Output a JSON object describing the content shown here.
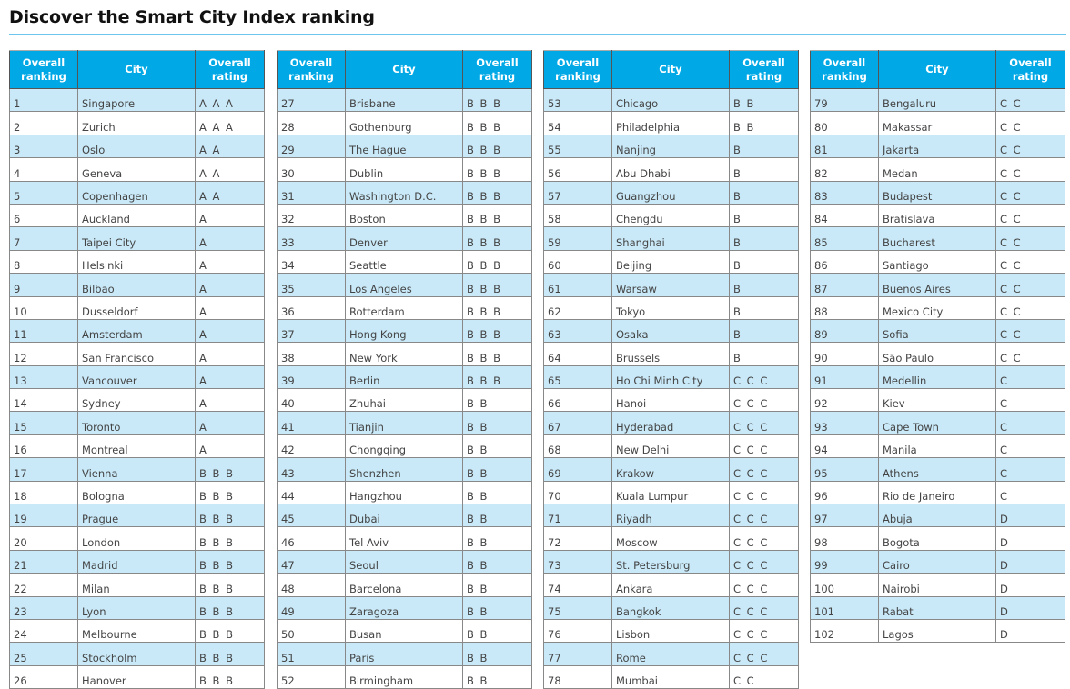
{
  "title": "Discover the Smart City Index ranking",
  "headers": {
    "ranking": "Overall ranking",
    "ranking_l1": "Overall",
    "ranking_l2": "ranking",
    "city": "City",
    "rating_l1": "Overall",
    "rating_l2": "rating"
  },
  "colors": {
    "header": "#00a9e6",
    "alt_row": "#c9e9f8"
  },
  "tables": [
    {
      "rows": [
        [
          "1",
          "Singapore",
          "A A A"
        ],
        [
          "2",
          "Zurich",
          "A A A"
        ],
        [
          "3",
          "Oslo",
          "A A"
        ],
        [
          "4",
          "Geneva",
          "A A"
        ],
        [
          "5",
          "Copenhagen",
          "A A"
        ],
        [
          "6",
          "Auckland",
          "A"
        ],
        [
          "7",
          "Taipei City",
          "A"
        ],
        [
          "8",
          "Helsinki",
          "A"
        ],
        [
          "9",
          "Bilbao",
          "A"
        ],
        [
          "10",
          "Dusseldorf",
          "A"
        ],
        [
          "11",
          "Amsterdam",
          "A"
        ],
        [
          "12",
          "San Francisco",
          "A"
        ],
        [
          "13",
          "Vancouver",
          "A"
        ],
        [
          "14",
          "Sydney",
          "A"
        ],
        [
          "15",
          "Toronto",
          "A"
        ],
        [
          "16",
          "Montreal",
          "A"
        ],
        [
          "17",
          "Vienna",
          "B B B"
        ],
        [
          "18",
          "Bologna",
          "B B B"
        ],
        [
          "19",
          "Prague",
          "B B B"
        ],
        [
          "20",
          "London",
          "B B B"
        ],
        [
          "21",
          "Madrid",
          "B B B"
        ],
        [
          "22",
          "Milan",
          "B B B"
        ],
        [
          "23",
          "Lyon",
          "B B B"
        ],
        [
          "24",
          "Melbourne",
          "B B B"
        ],
        [
          "25",
          "Stockholm",
          "B B B"
        ],
        [
          "26",
          "Hanover",
          "B B B"
        ]
      ]
    },
    {
      "rows": [
        [
          "27",
          "Brisbane",
          "B B B"
        ],
        [
          "28",
          "Gothenburg",
          "B B B"
        ],
        [
          "29",
          "The Hague",
          "B B B"
        ],
        [
          "30",
          "Dublin",
          "B B B"
        ],
        [
          "31",
          "Washington D.C.",
          "B B B"
        ],
        [
          "32",
          "Boston",
          "B B B"
        ],
        [
          "33",
          "Denver",
          "B B B"
        ],
        [
          "34",
          "Seattle",
          "B B B"
        ],
        [
          "35",
          "Los Angeles",
          "B B B"
        ],
        [
          "36",
          "Rotterdam",
          "B B B"
        ],
        [
          "37",
          "Hong Kong",
          "B B B"
        ],
        [
          "38",
          "New York",
          "B B B"
        ],
        [
          "39",
          "Berlin",
          "B B B"
        ],
        [
          "40",
          "Zhuhai",
          "B B"
        ],
        [
          "41",
          "Tianjin",
          "B B"
        ],
        [
          "42",
          "Chongqing",
          "B B"
        ],
        [
          "43",
          "Shenzhen",
          "B B"
        ],
        [
          "44",
          "Hangzhou",
          "B B"
        ],
        [
          "45",
          "Dubai",
          "B B"
        ],
        [
          "46",
          "Tel Aviv",
          "B B"
        ],
        [
          "47",
          "Seoul",
          "B B"
        ],
        [
          "48",
          "Barcelona",
          "B B"
        ],
        [
          "49",
          "Zaragoza",
          "B B"
        ],
        [
          "50",
          "Busan",
          "B B"
        ],
        [
          "51",
          "Paris",
          "B B"
        ],
        [
          "52",
          "Birmingham",
          "B B"
        ]
      ]
    },
    {
      "rows": [
        [
          "53",
          "Chicago",
          "B B"
        ],
        [
          "54",
          "Philadelphia",
          "B B"
        ],
        [
          "55",
          "Nanjing",
          "B"
        ],
        [
          "56",
          "Abu Dhabi",
          "B"
        ],
        [
          "57",
          "Guangzhou",
          "B"
        ],
        [
          "58",
          "Chengdu",
          "B"
        ],
        [
          "59",
          "Shanghai",
          "B"
        ],
        [
          "60",
          "Beijing",
          "B"
        ],
        [
          "61",
          "Warsaw",
          "B"
        ],
        [
          "62",
          "Tokyo",
          "B"
        ],
        [
          "63",
          "Osaka",
          "B"
        ],
        [
          "64",
          "Brussels",
          "B"
        ],
        [
          "65",
          "Ho Chi Minh City",
          "C C C"
        ],
        [
          "66",
          "Hanoi",
          "C C C"
        ],
        [
          "67",
          "Hyderabad",
          "C C C"
        ],
        [
          "68",
          "New Delhi",
          "C C C"
        ],
        [
          "69",
          "Krakow",
          "C C C"
        ],
        [
          "70",
          "Kuala Lumpur",
          "C C C"
        ],
        [
          "71",
          "Riyadh",
          "C C C"
        ],
        [
          "72",
          "Moscow",
          "C C C"
        ],
        [
          "73",
          "St. Petersburg",
          "C C C"
        ],
        [
          "74",
          "Ankara",
          "C C C"
        ],
        [
          "75",
          "Bangkok",
          "C C C"
        ],
        [
          "76",
          "Lisbon",
          "C C C"
        ],
        [
          "77",
          "Rome",
          "C C C"
        ],
        [
          "78",
          "Mumbai",
          "C C"
        ]
      ]
    },
    {
      "rows": [
        [
          "79",
          "Bengaluru",
          "C C"
        ],
        [
          "80",
          "Makassar",
          "C C"
        ],
        [
          "81",
          "Jakarta",
          "C C"
        ],
        [
          "82",
          "Medan",
          "C C"
        ],
        [
          "83",
          "Budapest",
          "C C"
        ],
        [
          "84",
          "Bratislava",
          "C C"
        ],
        [
          "85",
          "Bucharest",
          "C C"
        ],
        [
          "86",
          "Santiago",
          "C C"
        ],
        [
          "87",
          "Buenos Aires",
          "C C"
        ],
        [
          "88",
          "Mexico City",
          "C C"
        ],
        [
          "89",
          "Sofia",
          "C C"
        ],
        [
          "90",
          "São Paulo",
          "C C"
        ],
        [
          "91",
          "Medellin",
          "C"
        ],
        [
          "92",
          "Kiev",
          "C"
        ],
        [
          "93",
          "Cape Town",
          "C"
        ],
        [
          "94",
          "Manila",
          "C"
        ],
        [
          "95",
          "Athens",
          "C"
        ],
        [
          "96",
          "Rio de Janeiro",
          "C"
        ],
        [
          "97",
          "Abuja",
          "D"
        ],
        [
          "98",
          "Bogota",
          "D"
        ],
        [
          "99",
          "Cairo",
          "D"
        ],
        [
          "100",
          "Nairobi",
          "D"
        ],
        [
          "101",
          "Rabat",
          "D"
        ],
        [
          "102",
          "Lagos",
          "D"
        ]
      ]
    }
  ]
}
